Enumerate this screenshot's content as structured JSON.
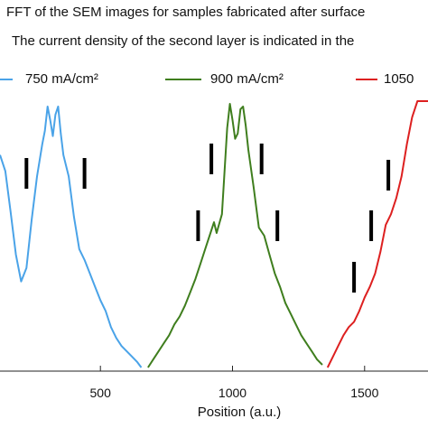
{
  "header": {
    "line1": "FFT of the SEM images for samples  fabricated after surface",
    "line2": "The current density of the second layer is indicated in the"
  },
  "chart_data": {
    "type": "line",
    "title": "",
    "xlabel": "Position (a.u.)",
    "ylabel": "",
    "xlim": [
      120,
      1740
    ],
    "ylim": [
      0,
      1.0
    ],
    "x_ticks": [
      500,
      1000,
      1500
    ],
    "x_tick_labels": [
      "500",
      "1000",
      "1500"
    ],
    "grid": false,
    "legend_position": "top",
    "series": [
      {
        "name": "750 mA/cm²",
        "color": "#4aa3e8",
        "x": [
          120,
          140,
          160,
          180,
          200,
          220,
          240,
          260,
          280,
          290,
          300,
          310,
          320,
          330,
          340,
          350,
          360,
          380,
          400,
          420,
          440,
          460,
          480,
          500,
          520,
          540,
          560,
          580,
          600,
          620,
          640,
          655
        ],
        "y": [
          0.8,
          0.74,
          0.59,
          0.43,
          0.33,
          0.38,
          0.56,
          0.72,
          0.84,
          0.89,
          0.98,
          0.93,
          0.87,
          0.95,
          0.98,
          0.88,
          0.8,
          0.72,
          0.57,
          0.45,
          0.41,
          0.36,
          0.31,
          0.26,
          0.22,
          0.16,
          0.12,
          0.09,
          0.07,
          0.05,
          0.03,
          0.01
        ]
      },
      {
        "name": "900 mA/cm²",
        "color": "#3f7e1e",
        "x": [
          680,
          700,
          720,
          740,
          760,
          780,
          800,
          820,
          840,
          860,
          880,
          900,
          920,
          930,
          940,
          960,
          970,
          980,
          990,
          1000,
          1010,
          1020,
          1030,
          1040,
          1050,
          1060,
          1080,
          1100,
          1120,
          1140,
          1160,
          1180,
          1200,
          1220,
          1240,
          1260,
          1280,
          1300,
          1320,
          1340
        ],
        "y": [
          0.01,
          0.04,
          0.07,
          0.1,
          0.13,
          0.17,
          0.2,
          0.24,
          0.29,
          0.34,
          0.4,
          0.46,
          0.52,
          0.55,
          0.51,
          0.58,
          0.74,
          0.9,
          0.99,
          0.93,
          0.86,
          0.88,
          0.97,
          0.98,
          0.91,
          0.82,
          0.68,
          0.53,
          0.5,
          0.43,
          0.36,
          0.31,
          0.25,
          0.21,
          0.17,
          0.13,
          0.1,
          0.07,
          0.04,
          0.02
        ]
      },
      {
        "name": "1050",
        "color": "#dd2020",
        "x": [
          1360,
          1380,
          1400,
          1420,
          1440,
          1460,
          1480,
          1500,
          1520,
          1540,
          1560,
          1580,
          1600,
          1620,
          1640,
          1660,
          1680,
          1700,
          1720,
          1740
        ],
        "y": [
          0.01,
          0.05,
          0.09,
          0.13,
          0.16,
          0.18,
          0.22,
          0.27,
          0.31,
          0.36,
          0.44,
          0.54,
          0.58,
          0.64,
          0.72,
          0.84,
          0.94,
          1.0,
          1.0,
          1.0
        ]
      }
    ],
    "annotations": {
      "marker_x": [
        220,
        440,
        870,
        920,
        1110,
        1170,
        1460,
        1525,
        1590
      ]
    }
  }
}
